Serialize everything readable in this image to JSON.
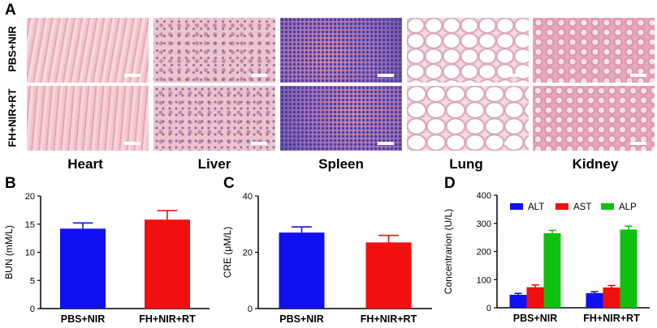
{
  "panels": {
    "a": "A",
    "b": "B",
    "c": "C",
    "d": "D"
  },
  "histology": {
    "rows": [
      "PBS+NIR",
      "FH+NIR+RT"
    ],
    "organs": [
      "Heart",
      "Liver",
      "Spleen",
      "Lung",
      "Kidney"
    ]
  },
  "colors": {
    "blue": "#1010f0",
    "red": "#f01010",
    "green": "#10c010"
  },
  "chart_data": [
    {
      "type": "bar",
      "panel": "B",
      "categories": [
        "PBS+NIR",
        "FH+NIR+RT"
      ],
      "values": [
        14.2,
        15.8
      ],
      "errors": [
        1.0,
        1.6
      ],
      "bar_colors": [
        "#1010f0",
        "#f01010"
      ],
      "ylabel": "BUN (mM/L)",
      "ylim": [
        0,
        20
      ],
      "yticks": [
        0,
        5,
        10,
        15,
        20
      ]
    },
    {
      "type": "bar",
      "panel": "C",
      "categories": [
        "PBS+NIR",
        "FH+NIR+RT"
      ],
      "values": [
        27,
        23.5
      ],
      "errors": [
        2,
        2.5
      ],
      "bar_colors": [
        "#1010f0",
        "#f01010"
      ],
      "ylabel": "CRE (μM/L)",
      "ylim": [
        0,
        40
      ],
      "yticks": [
        0,
        20,
        40
      ]
    },
    {
      "type": "bar",
      "panel": "D",
      "categories": [
        "PBS+NIR",
        "FH+NIR+RT"
      ],
      "series": [
        {
          "name": "ALT",
          "color": "#1010f0",
          "values": [
            46,
            52
          ],
          "errors": [
            5,
            5
          ]
        },
        {
          "name": "AST",
          "color": "#f01010",
          "values": [
            73,
            72
          ],
          "errors": [
            8,
            7
          ]
        },
        {
          "name": "ALP",
          "color": "#10c010",
          "values": [
            265,
            278
          ],
          "errors": [
            10,
            12
          ]
        }
      ],
      "ylabel": "Concentrarion (U/L)",
      "ylim": [
        0,
        400
      ],
      "yticks": [
        0,
        100,
        200,
        300,
        400
      ],
      "legend": "top"
    }
  ]
}
